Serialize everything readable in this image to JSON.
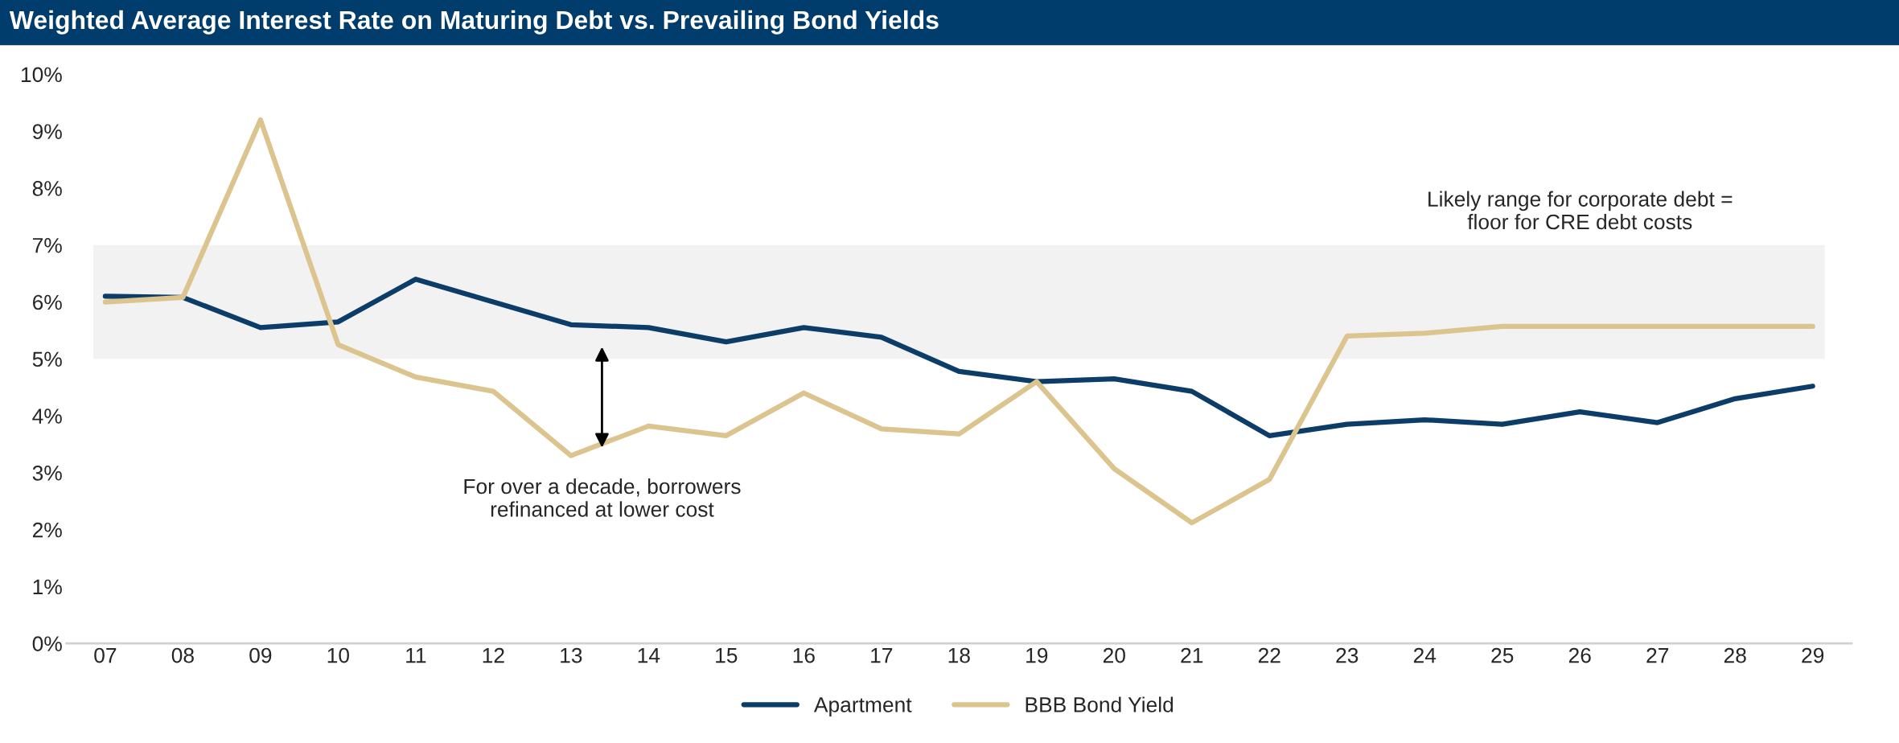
{
  "chart_data": {
    "type": "line",
    "title": "Weighted Average Interest Rate on Maturing Debt vs. Prevailing Bond Yields",
    "categories": [
      "07",
      "08",
      "09",
      "10",
      "11",
      "12",
      "13",
      "14",
      "15",
      "16",
      "17",
      "18",
      "19",
      "20",
      "21",
      "22",
      "23",
      "24",
      "25",
      "26",
      "27",
      "28",
      "29"
    ],
    "series": [
      {
        "name": "Apartment",
        "color": "#0b3d68",
        "values": [
          6.1,
          6.08,
          5.55,
          5.65,
          6.4,
          6.0,
          5.6,
          5.55,
          5.3,
          5.55,
          5.38,
          4.78,
          4.6,
          4.65,
          4.43,
          3.65,
          3.85,
          3.93,
          3.85,
          4.07,
          3.88,
          4.3,
          4.52
        ]
      },
      {
        "name": "BBB Bond Yield",
        "color": "#dcc48e",
        "values": [
          6.0,
          6.08,
          9.2,
          5.25,
          4.68,
          4.43,
          3.3,
          3.82,
          3.65,
          4.4,
          3.77,
          3.68,
          4.6,
          3.07,
          2.12,
          2.88,
          5.4,
          5.45,
          5.57,
          5.57,
          5.57,
          5.57,
          5.57
        ]
      }
    ],
    "ylim": [
      0,
      10
    ],
    "yticks": [
      {
        "value": 0,
        "label": "0%"
      },
      {
        "value": 1,
        "label": "1%"
      },
      {
        "value": 2,
        "label": "2%"
      },
      {
        "value": 3,
        "label": "3%"
      },
      {
        "value": 4,
        "label": "4%"
      },
      {
        "value": 5,
        "label": "5%"
      },
      {
        "value": 6,
        "label": "6%"
      },
      {
        "value": 7,
        "label": "7%"
      },
      {
        "value": 8,
        "label": "8%"
      },
      {
        "value": 9,
        "label": "9%"
      },
      {
        "value": 10,
        "label": "10%"
      }
    ],
    "bands": [
      {
        "axis": "y",
        "from": 5,
        "to": 7,
        "label": "Likely range for corporate debt =\nfloor for CRE debt costs",
        "color": "#f2f2f2"
      }
    ],
    "annotations": [
      "For over a decade, borrowers\nrefinanced at lower cost"
    ],
    "grid": false,
    "legend": "bottom",
    "marker": "none",
    "line_style": "solid"
  }
}
